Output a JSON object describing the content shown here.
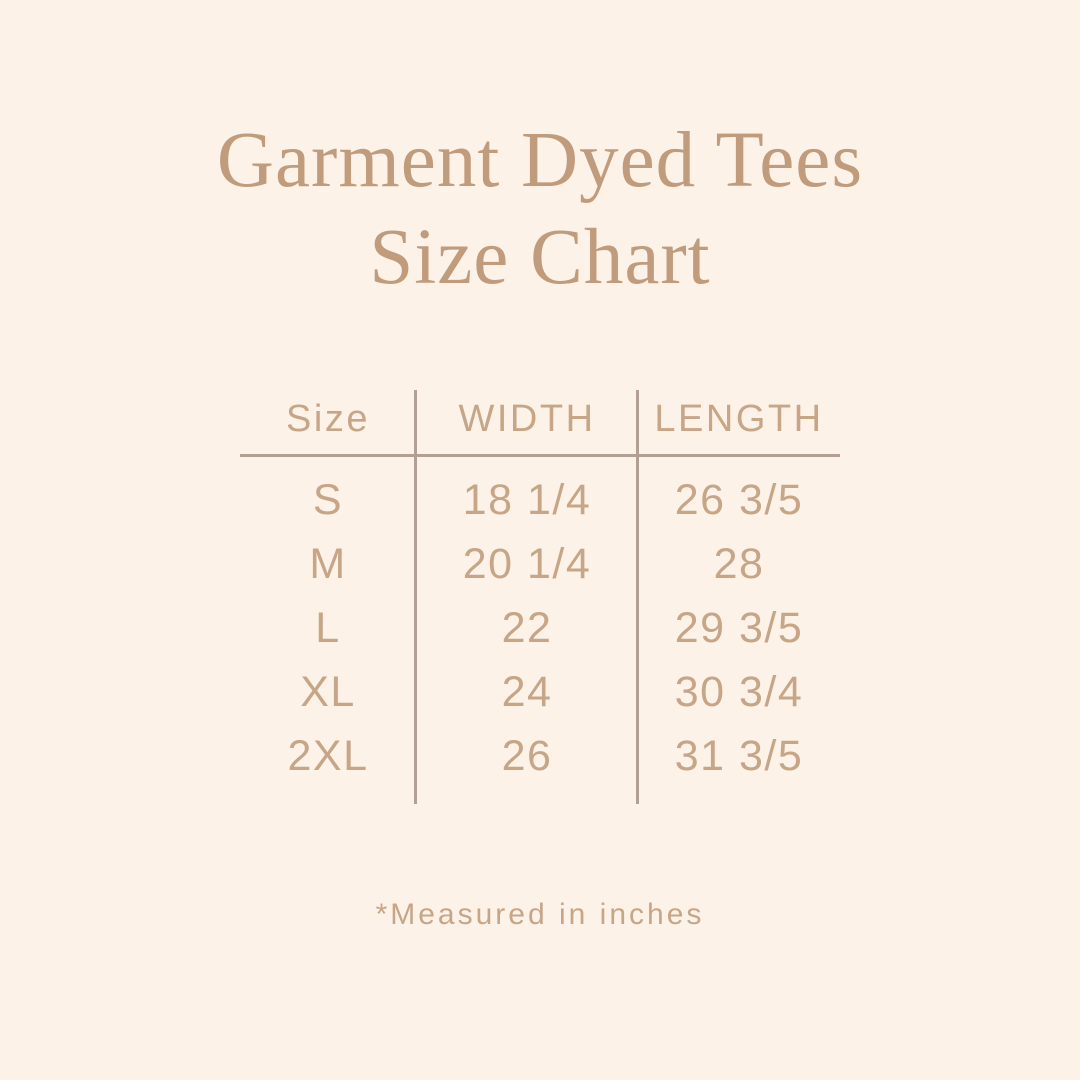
{
  "colors": {
    "bg": "#fcf2e7",
    "title": "#c09c7c",
    "text": "#c7a687",
    "line": "#b1a093"
  },
  "title": {
    "line1": "Garment Dyed Tees",
    "line2": "Size Chart"
  },
  "table": {
    "headers": [
      "Size",
      "WIDTH",
      "LENGTH"
    ],
    "rows": [
      {
        "size": "S",
        "width": "18 1/4",
        "length": "26 3/5"
      },
      {
        "size": "M",
        "width": "20 1/4",
        "length": "28"
      },
      {
        "size": "L",
        "width": "22",
        "length": "29 3/5"
      },
      {
        "size": "XL",
        "width": "24",
        "length": "30 3/4"
      },
      {
        "size": "2XL",
        "width": "26",
        "length": "31 3/5"
      }
    ]
  },
  "footnote": "*Measured in inches"
}
